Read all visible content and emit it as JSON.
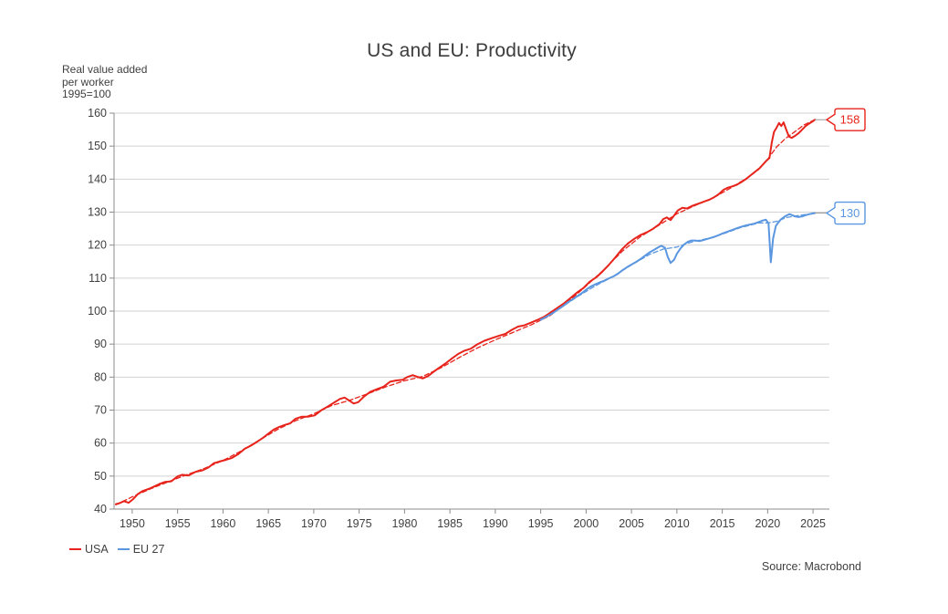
{
  "chart_data": {
    "type": "line",
    "title": "US and EU: Productivity",
    "ylabel_lines": [
      "Real value added",
      "per worker",
      "1995=100"
    ],
    "xlabel": "",
    "source": "Source: Macrobond",
    "x_ticks": [
      1950,
      1955,
      1960,
      1965,
      1970,
      1975,
      1980,
      1985,
      1990,
      1995,
      2000,
      2005,
      2010,
      2015,
      2020,
      2025
    ],
    "y_ticks": [
      40,
      50,
      60,
      70,
      80,
      90,
      100,
      110,
      120,
      130,
      140,
      150,
      160
    ],
    "xlim": [
      1948,
      2026.8
    ],
    "ylim": [
      40,
      160
    ],
    "grid": "horizontal",
    "legend_position": "bottom-left",
    "colors": {
      "usa": "#e7241c",
      "eu": "#5b97e0",
      "gridline": "#d2d2d2",
      "axis": "#8c8c8c",
      "text": "#3f3f3f"
    },
    "series": [
      {
        "name": "USA",
        "color": "#e7241c",
        "style": "solid",
        "end_label": "158",
        "points": [
          [
            1948.2,
            41.5
          ],
          [
            1948.6,
            41.8
          ],
          [
            1949.1,
            42.4
          ],
          [
            1949.6,
            41.9
          ],
          [
            1950.1,
            43.0
          ],
          [
            1950.6,
            44.5
          ],
          [
            1951.1,
            45.4
          ],
          [
            1952,
            46.3
          ],
          [
            1953,
            47.6
          ],
          [
            1953.6,
            48.2
          ],
          [
            1954.3,
            48.4
          ],
          [
            1955,
            49.9
          ],
          [
            1955.5,
            50.4
          ],
          [
            1956.2,
            50.2
          ],
          [
            1957,
            51.3
          ],
          [
            1957.7,
            51.7
          ],
          [
            1958.4,
            52.6
          ],
          [
            1959,
            53.9
          ],
          [
            1959.6,
            54.4
          ],
          [
            1960.3,
            54.9
          ],
          [
            1961,
            55.5
          ],
          [
            1961.7,
            56.7
          ],
          [
            1962.4,
            58.3
          ],
          [
            1963,
            59.1
          ],
          [
            1963.7,
            60.3
          ],
          [
            1964.4,
            61.6
          ],
          [
            1965.1,
            63.1
          ],
          [
            1965.6,
            64.1
          ],
          [
            1966.2,
            64.9
          ],
          [
            1966.8,
            65.5
          ],
          [
            1967.4,
            66.0
          ],
          [
            1968,
            67.4
          ],
          [
            1968.7,
            68.0
          ],
          [
            1969.4,
            68.0
          ],
          [
            1970.1,
            68.4
          ],
          [
            1970.8,
            69.9
          ],
          [
            1971.5,
            71.0
          ],
          [
            1972.2,
            72.2
          ],
          [
            1972.9,
            73.4
          ],
          [
            1973.4,
            73.8
          ],
          [
            1973.9,
            72.9
          ],
          [
            1974.4,
            72.0
          ],
          [
            1974.9,
            72.4
          ],
          [
            1975.5,
            74.0
          ],
          [
            1976.2,
            75.5
          ],
          [
            1977,
            76.4
          ],
          [
            1977.7,
            77.1
          ],
          [
            1978.4,
            78.6
          ],
          [
            1979.1,
            79.0
          ],
          [
            1979.8,
            79.2
          ],
          [
            1980.3,
            80.0
          ],
          [
            1980.9,
            80.6
          ],
          [
            1981.4,
            80.1
          ],
          [
            1982,
            79.6
          ],
          [
            1982.6,
            80.3
          ],
          [
            1983.2,
            81.6
          ],
          [
            1983.8,
            82.8
          ],
          [
            1984.5,
            84.1
          ],
          [
            1985.2,
            85.6
          ],
          [
            1985.9,
            87.0
          ],
          [
            1986.6,
            88.0
          ],
          [
            1987.3,
            88.6
          ],
          [
            1988,
            89.9
          ],
          [
            1988.8,
            91.0
          ],
          [
            1989.6,
            91.8
          ],
          [
            1990.4,
            92.5
          ],
          [
            1991.1,
            93.1
          ],
          [
            1991.8,
            94.3
          ],
          [
            1992.5,
            95.3
          ],
          [
            1993.2,
            95.7
          ],
          [
            1994,
            96.6
          ],
          [
            1994.7,
            97.4
          ],
          [
            1995.4,
            98.3
          ],
          [
            1996.1,
            99.6
          ],
          [
            1996.8,
            100.9
          ],
          [
            1997.5,
            102.2
          ],
          [
            1998.2,
            103.8
          ],
          [
            1999,
            105.6
          ],
          [
            1999.7,
            107.0
          ],
          [
            2000.4,
            108.9
          ],
          [
            2001.1,
            110.2
          ],
          [
            2001.8,
            112.0
          ],
          [
            2002.5,
            114.0
          ],
          [
            2003.2,
            116.2
          ],
          [
            2003.9,
            118.6
          ],
          [
            2004.6,
            120.5
          ],
          [
            2005.3,
            121.9
          ],
          [
            2006,
            123.1
          ],
          [
            2006.7,
            123.9
          ],
          [
            2007.4,
            125.0
          ],
          [
            2008.1,
            126.4
          ],
          [
            2008.5,
            127.9
          ],
          [
            2008.9,
            128.4
          ],
          [
            2009.3,
            127.6
          ],
          [
            2009.7,
            129.0
          ],
          [
            2010.1,
            130.5
          ],
          [
            2010.6,
            131.3
          ],
          [
            2011.1,
            131.1
          ],
          [
            2011.6,
            131.8
          ],
          [
            2012.1,
            132.3
          ],
          [
            2012.6,
            132.8
          ],
          [
            2013.1,
            133.3
          ],
          [
            2013.6,
            133.8
          ],
          [
            2014.1,
            134.5
          ],
          [
            2014.6,
            135.4
          ],
          [
            2015.1,
            136.7
          ],
          [
            2015.6,
            137.4
          ],
          [
            2016.1,
            137.8
          ],
          [
            2016.6,
            138.3
          ],
          [
            2017.1,
            139.1
          ],
          [
            2017.6,
            140.0
          ],
          [
            2018.1,
            141.1
          ],
          [
            2018.6,
            142.2
          ],
          [
            2019.1,
            143.3
          ],
          [
            2019.5,
            144.5
          ],
          [
            2019.9,
            145.7
          ],
          [
            2020.2,
            146.4
          ],
          [
            2020.45,
            151.0
          ],
          [
            2020.7,
            154.3
          ],
          [
            2021,
            155.7
          ],
          [
            2021.25,
            157.0
          ],
          [
            2021.5,
            156.1
          ],
          [
            2021.75,
            157.2
          ],
          [
            2022.05,
            155.0
          ],
          [
            2022.35,
            152.9
          ],
          [
            2022.65,
            152.5
          ],
          [
            2023,
            153.1
          ],
          [
            2023.4,
            153.9
          ],
          [
            2023.8,
            155.0
          ],
          [
            2024.2,
            156.1
          ],
          [
            2024.55,
            156.8
          ],
          [
            2024.9,
            157.4
          ],
          [
            2025.2,
            158.0
          ]
        ]
      },
      {
        "name": "USA trend",
        "color": "#e7241c",
        "style": "dashed",
        "points": [
          [
            1948.2,
            41.3
          ],
          [
            1950,
            43.7
          ],
          [
            1952,
            46.1
          ],
          [
            1954,
            48.3
          ],
          [
            1956,
            50.4
          ],
          [
            1958,
            52.4
          ],
          [
            1960,
            54.7
          ],
          [
            1962,
            57.6
          ],
          [
            1964,
            60.9
          ],
          [
            1966,
            64.1
          ],
          [
            1968,
            66.8
          ],
          [
            1970,
            68.9
          ],
          [
            1972,
            71.4
          ],
          [
            1974,
            73.0
          ],
          [
            1976,
            75.0
          ],
          [
            1978,
            77.1
          ],
          [
            1980,
            78.9
          ],
          [
            1982,
            80.2
          ],
          [
            1984,
            82.8
          ],
          [
            1986,
            85.9
          ],
          [
            1988,
            88.8
          ],
          [
            1990,
            91.3
          ],
          [
            1992,
            93.6
          ],
          [
            1994,
            95.9
          ],
          [
            1996,
            98.6
          ],
          [
            1998,
            102.8
          ],
          [
            2000,
            107.6
          ],
          [
            2002,
            112.7
          ],
          [
            2004,
            118.2
          ],
          [
            2006,
            122.6
          ],
          [
            2008,
            126.0
          ],
          [
            2010,
            129.5
          ],
          [
            2012,
            132.0
          ],
          [
            2014,
            134.3
          ],
          [
            2016,
            137.4
          ],
          [
            2018,
            140.8
          ],
          [
            2019,
            142.9
          ],
          [
            2020,
            146.0
          ],
          [
            2021,
            149.8
          ],
          [
            2022,
            152.4
          ],
          [
            2023,
            154.4
          ],
          [
            2024,
            156.4
          ],
          [
            2025.2,
            158.0
          ]
        ]
      },
      {
        "name": "EU 27",
        "color": "#5b97e0",
        "style": "solid",
        "end_label": "130",
        "points": [
          [
            1995,
            97.4
          ],
          [
            1995.5,
            98.1
          ],
          [
            1996,
            98.9
          ],
          [
            1996.5,
            99.7
          ],
          [
            1997,
            100.7
          ],
          [
            1997.5,
            101.6
          ],
          [
            1998,
            102.7
          ],
          [
            1998.5,
            103.5
          ],
          [
            1999,
            104.5
          ],
          [
            1999.5,
            105.4
          ],
          [
            2000,
            106.5
          ],
          [
            2000.5,
            107.4
          ],
          [
            2001,
            108.1
          ],
          [
            2001.5,
            108.7
          ],
          [
            2002,
            109.2
          ],
          [
            2002.5,
            109.9
          ],
          [
            2003,
            110.5
          ],
          [
            2003.5,
            111.3
          ],
          [
            2004,
            112.4
          ],
          [
            2004.5,
            113.3
          ],
          [
            2005,
            114.1
          ],
          [
            2005.5,
            114.9
          ],
          [
            2006,
            115.8
          ],
          [
            2006.5,
            116.8
          ],
          [
            2007,
            117.8
          ],
          [
            2007.5,
            118.6
          ],
          [
            2008,
            119.4
          ],
          [
            2008.3,
            119.8
          ],
          [
            2008.7,
            119.2
          ],
          [
            2009,
            116.4
          ],
          [
            2009.3,
            114.6
          ],
          [
            2009.7,
            115.6
          ],
          [
            2010,
            117.4
          ],
          [
            2010.4,
            119.0
          ],
          [
            2010.8,
            120.2
          ],
          [
            2011.2,
            121.0
          ],
          [
            2011.6,
            121.4
          ],
          [
            2012,
            121.4
          ],
          [
            2012.5,
            121.2
          ],
          [
            2013,
            121.6
          ],
          [
            2013.5,
            122.0
          ],
          [
            2014,
            122.4
          ],
          [
            2014.5,
            122.9
          ],
          [
            2015,
            123.5
          ],
          [
            2015.5,
            124.0
          ],
          [
            2016,
            124.5
          ],
          [
            2016.5,
            125.0
          ],
          [
            2017,
            125.5
          ],
          [
            2017.5,
            125.9
          ],
          [
            2018,
            126.2
          ],
          [
            2018.5,
            126.5
          ],
          [
            2019,
            127.0
          ],
          [
            2019.4,
            127.4
          ],
          [
            2019.8,
            127.7
          ],
          [
            2020.1,
            126.6
          ],
          [
            2020.35,
            114.8
          ],
          [
            2020.6,
            122.0
          ],
          [
            2020.9,
            125.8
          ],
          [
            2021.2,
            127.0
          ],
          [
            2021.5,
            127.9
          ],
          [
            2021.8,
            128.5
          ],
          [
            2022.1,
            129.0
          ],
          [
            2022.4,
            129.4
          ],
          [
            2022.7,
            129.1
          ],
          [
            2023,
            128.7
          ],
          [
            2023.4,
            128.5
          ],
          [
            2023.8,
            128.7
          ],
          [
            2024.2,
            129.1
          ],
          [
            2024.6,
            129.4
          ],
          [
            2025,
            129.6
          ],
          [
            2025.2,
            129.7
          ]
        ]
      },
      {
        "name": "EU 27 trend",
        "color": "#5b97e0",
        "style": "dashed",
        "points": [
          [
            1995,
            97.2
          ],
          [
            1997,
            100.6
          ],
          [
            1999,
            104.3
          ],
          [
            2001,
            107.6
          ],
          [
            2003,
            110.6
          ],
          [
            2005,
            114.0
          ],
          [
            2007,
            117.2
          ],
          [
            2008.5,
            118.8
          ],
          [
            2010,
            119.4
          ],
          [
            2011,
            120.4
          ],
          [
            2012,
            121.2
          ],
          [
            2013,
            121.8
          ],
          [
            2014,
            122.4
          ],
          [
            2015,
            123.3
          ],
          [
            2016,
            124.3
          ],
          [
            2017,
            125.3
          ],
          [
            2018,
            126.0
          ],
          [
            2019,
            126.7
          ],
          [
            2020,
            126.7
          ],
          [
            2021,
            127.2
          ],
          [
            2022,
            128.3
          ],
          [
            2023,
            128.8
          ],
          [
            2024,
            129.2
          ],
          [
            2025.2,
            129.6
          ]
        ]
      }
    ]
  }
}
